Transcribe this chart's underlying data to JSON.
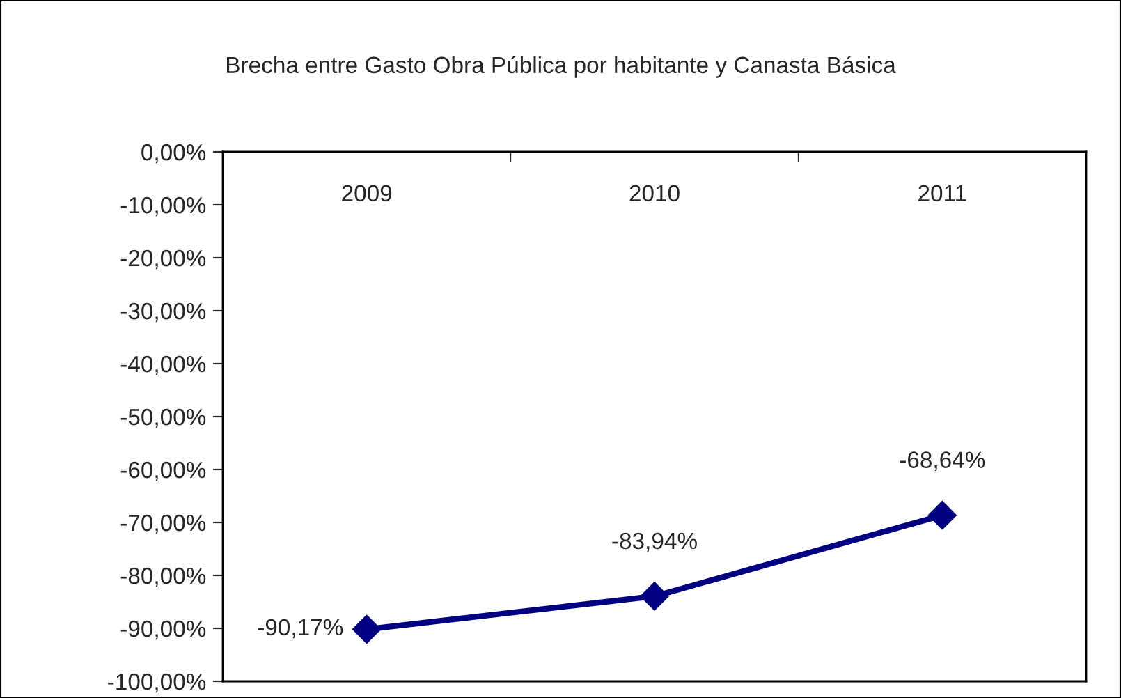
{
  "chart_data": {
    "type": "line",
    "title": "Brecha entre Gasto Obra Pública por habitante y Canasta Básica",
    "categories": [
      "2009",
      "2010",
      "2011"
    ],
    "series": [
      {
        "color": "#000080",
        "values": [
          -90.17,
          -83.94,
          -68.64
        ],
        "value_labels": [
          "-90,17%",
          "-83,94%",
          "-68,64%"
        ]
      }
    ],
    "ylim": [
      -100,
      0
    ],
    "yticks": [
      {
        "value": 0,
        "label": "0,00%"
      },
      {
        "value": -10,
        "label": "-10,00%"
      },
      {
        "value": -20,
        "label": "-20,00%"
      },
      {
        "value": -30,
        "label": "-30,00%"
      },
      {
        "value": -40,
        "label": "-40,00%"
      },
      {
        "value": -50,
        "label": "-50,00%"
      },
      {
        "value": -60,
        "label": "-60,00%"
      },
      {
        "value": -70,
        "label": "-70,00%"
      },
      {
        "value": -80,
        "label": "-80,00%"
      },
      {
        "value": -90,
        "label": "-90,00%"
      },
      {
        "value": -100,
        "label": "-100,00%"
      }
    ],
    "marker": "diamond",
    "line_style": "solid",
    "grid": false,
    "legend": false
  }
}
